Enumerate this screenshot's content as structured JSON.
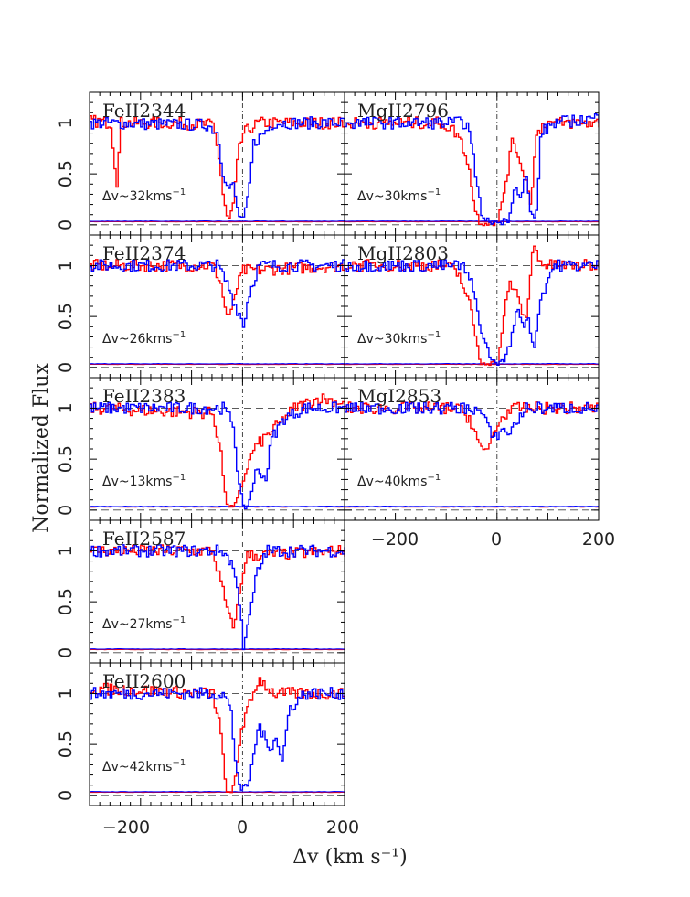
{
  "chart_data": {
    "type": "line",
    "xlabel": "Δv (km s⁻¹)",
    "ylabel": "Normalized Flux",
    "xlim": [
      -300,
      200
    ],
    "ylim": [
      -0.1,
      1.3
    ],
    "x_ticks": [
      "−200",
      "0",
      "200"
    ],
    "y_ticks": [
      "0",
      "0.5",
      "1"
    ],
    "colors": {
      "series_a": "#ff0000",
      "series_b": "#0000ff"
    },
    "panels": [
      {
        "id": "feii2344",
        "label": "FeII2344",
        "dv": "Δv~32kms",
        "red": [
          [
            -300,
            1.02
          ],
          [
            -260,
            1.0
          ],
          [
            -248,
            0.4
          ],
          [
            -240,
            1.0
          ],
          [
            -150,
            1.0
          ],
          [
            -60,
            0.98
          ],
          [
            -50,
            0.75
          ],
          [
            -40,
            0.3
          ],
          [
            -30,
            0.02
          ],
          [
            -20,
            0.2
          ],
          [
            -10,
            0.7
          ],
          [
            0,
            0.9
          ],
          [
            30,
            1.0
          ],
          [
            200,
            1.0
          ]
        ],
        "blue": [
          [
            -300,
            1.0
          ],
          [
            -70,
            0.98
          ],
          [
            -50,
            0.9
          ],
          [
            -40,
            0.5
          ],
          [
            -30,
            0.35
          ],
          [
            -20,
            0.4
          ],
          [
            -10,
            0.1
          ],
          [
            0,
            0.05
          ],
          [
            10,
            0.3
          ],
          [
            20,
            0.8
          ],
          [
            40,
            0.9
          ],
          [
            60,
            1.0
          ],
          [
            200,
            1.0
          ]
        ]
      },
      {
        "id": "feii2374",
        "label": "FeII2374",
        "dv": "Δv~26kms",
        "red": [
          [
            -300,
            1.0
          ],
          [
            -60,
            1.0
          ],
          [
            -45,
            0.85
          ],
          [
            -35,
            0.55
          ],
          [
            -25,
            0.5
          ],
          [
            -15,
            0.75
          ],
          [
            0,
            0.95
          ],
          [
            200,
            1.0
          ]
        ],
        "blue": [
          [
            -300,
            1.0
          ],
          [
            -50,
            1.0
          ],
          [
            -30,
            0.8
          ],
          [
            -15,
            0.6
          ],
          [
            -5,
            0.5
          ],
          [
            0,
            0.4
          ],
          [
            10,
            0.7
          ],
          [
            30,
            1.0
          ],
          [
            200,
            1.0
          ]
        ]
      },
      {
        "id": "feii2383",
        "label": "FeII2383",
        "dv": "Δv~13kms",
        "red": [
          [
            -300,
            1.0
          ],
          [
            -60,
            0.95
          ],
          [
            -45,
            0.6
          ],
          [
            -35,
            0.1
          ],
          [
            -25,
            0.02
          ],
          [
            -15,
            0.05
          ],
          [
            0,
            0.3
          ],
          [
            20,
            0.6
          ],
          [
            60,
            0.8
          ],
          [
            100,
            1.0
          ],
          [
            150,
            1.1
          ],
          [
            200,
            1.05
          ]
        ],
        "blue": [
          [
            -300,
            1.0
          ],
          [
            -40,
            1.0
          ],
          [
            -20,
            0.85
          ],
          [
            -10,
            0.3
          ],
          [
            0,
            0.02
          ],
          [
            10,
            0.05
          ],
          [
            25,
            0.4
          ],
          [
            45,
            0.3
          ],
          [
            55,
            0.7
          ],
          [
            80,
            0.9
          ],
          [
            120,
            1.0
          ],
          [
            200,
            1.0
          ]
        ]
      },
      {
        "id": "feii2587",
        "label": "FeII2587",
        "dv": "Δv~27kms",
        "red": [
          [
            -300,
            1.0
          ],
          [
            -60,
            1.0
          ],
          [
            -45,
            0.7
          ],
          [
            -30,
            0.4
          ],
          [
            -20,
            0.25
          ],
          [
            -10,
            0.5
          ],
          [
            5,
            0.95
          ],
          [
            200,
            1.0
          ]
        ],
        "blue": [
          [
            -300,
            1.0
          ],
          [
            -40,
            1.0
          ],
          [
            -20,
            0.85
          ],
          [
            -5,
            0.4
          ],
          [
            0,
            0.05
          ],
          [
            10,
            0.3
          ],
          [
            25,
            0.75
          ],
          [
            45,
            1.0
          ],
          [
            200,
            1.0
          ]
        ]
      },
      {
        "id": "feii2600",
        "label": "FeII2600",
        "dv": "Δv~42kms",
        "red": [
          [
            -300,
            1.05
          ],
          [
            -60,
            1.0
          ],
          [
            -45,
            0.65
          ],
          [
            -35,
            0.1
          ],
          [
            -25,
            -0.02
          ],
          [
            -15,
            0.2
          ],
          [
            -5,
            0.65
          ],
          [
            10,
            0.85
          ],
          [
            30,
            1.15
          ],
          [
            60,
            1.0
          ],
          [
            200,
            1.0
          ]
        ],
        "blue": [
          [
            -300,
            1.0
          ],
          [
            -40,
            1.0
          ],
          [
            -25,
            0.85
          ],
          [
            -15,
            0.3
          ],
          [
            -5,
            0.05
          ],
          [
            10,
            0.1
          ],
          [
            30,
            0.7
          ],
          [
            50,
            0.45
          ],
          [
            65,
            0.6
          ],
          [
            75,
            0.3
          ],
          [
            90,
            0.85
          ],
          [
            120,
            1.0
          ],
          [
            200,
            1.0
          ]
        ]
      },
      {
        "id": "mgii2796",
        "label": "MgII2796",
        "dv": "Δv~30kms",
        "red": [
          [
            -300,
            1.0
          ],
          [
            -110,
            1.0
          ],
          [
            -80,
            0.9
          ],
          [
            -60,
            0.65
          ],
          [
            -45,
            0.15
          ],
          [
            -35,
            0.02
          ],
          [
            0,
            0.02
          ],
          [
            15,
            0.4
          ],
          [
            30,
            0.85
          ],
          [
            45,
            0.6
          ],
          [
            55,
            0.45
          ],
          [
            65,
            0.2
          ],
          [
            75,
            0.85
          ],
          [
            90,
            1.0
          ],
          [
            200,
            1.0
          ]
        ],
        "blue": [
          [
            -300,
            1.0
          ],
          [
            -60,
            1.0
          ],
          [
            -45,
            0.55
          ],
          [
            -30,
            0.05
          ],
          [
            0,
            0.02
          ],
          [
            20,
            0.05
          ],
          [
            35,
            0.4
          ],
          [
            45,
            0.25
          ],
          [
            55,
            0.5
          ],
          [
            65,
            0.1
          ],
          [
            75,
            0.05
          ],
          [
            85,
            0.9
          ],
          [
            110,
            1.0
          ],
          [
            200,
            1.05
          ]
        ]
      },
      {
        "id": "mgii2803",
        "label": "MgII2803",
        "dv": "Δv~30kms",
        "red": [
          [
            -300,
            1.0
          ],
          [
            -100,
            1.0
          ],
          [
            -75,
            0.9
          ],
          [
            -55,
            0.6
          ],
          [
            -45,
            0.35
          ],
          [
            -35,
            0.05
          ],
          [
            0,
            0.05
          ],
          [
            15,
            0.6
          ],
          [
            25,
            0.85
          ],
          [
            45,
            0.6
          ],
          [
            55,
            0.45
          ],
          [
            70,
            1.2
          ],
          [
            90,
            1.0
          ],
          [
            200,
            1.0
          ]
        ],
        "blue": [
          [
            -300,
            1.0
          ],
          [
            -70,
            1.0
          ],
          [
            -50,
            0.8
          ],
          [
            -30,
            0.3
          ],
          [
            -10,
            0.05
          ],
          [
            10,
            0.05
          ],
          [
            25,
            0.25
          ],
          [
            40,
            0.6
          ],
          [
            50,
            0.4
          ],
          [
            60,
            0.5
          ],
          [
            70,
            0.15
          ],
          [
            85,
            0.7
          ],
          [
            110,
            1.0
          ],
          [
            200,
            1.0
          ]
        ]
      },
      {
        "id": "mgi2853",
        "label": "MgI2853",
        "dv": "Δv~40kms",
        "red": [
          [
            -300,
            1.0
          ],
          [
            -80,
            1.0
          ],
          [
            -55,
            0.9
          ],
          [
            -40,
            0.7
          ],
          [
            -30,
            0.55
          ],
          [
            -20,
            0.6
          ],
          [
            -5,
            0.8
          ],
          [
            15,
            0.95
          ],
          [
            40,
            1.0
          ],
          [
            200,
            1.0
          ]
        ],
        "blue": [
          [
            -300,
            1.0
          ],
          [
            -50,
            1.0
          ],
          [
            -30,
            0.95
          ],
          [
            -15,
            0.75
          ],
          [
            -5,
            0.7
          ],
          [
            5,
            0.8
          ],
          [
            20,
            0.75
          ],
          [
            35,
            0.85
          ],
          [
            55,
            1.0
          ],
          [
            200,
            1.0
          ]
        ]
      }
    ]
  }
}
